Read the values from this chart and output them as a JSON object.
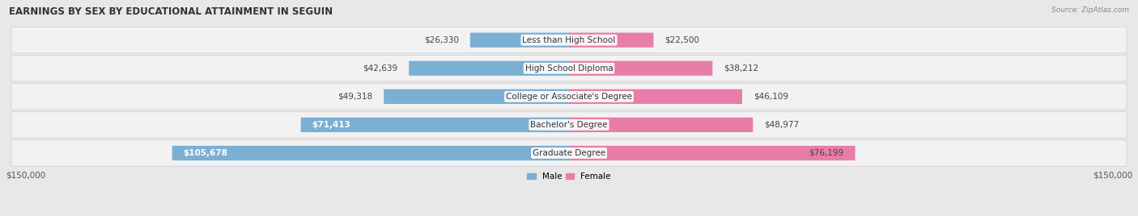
{
  "title": "EARNINGS BY SEX BY EDUCATIONAL ATTAINMENT IN SEGUIN",
  "source": "Source: ZipAtlas.com",
  "categories": [
    "Less than High School",
    "High School Diploma",
    "College or Associate's Degree",
    "Bachelor's Degree",
    "Graduate Degree"
  ],
  "male_values": [
    26330,
    42639,
    49318,
    71413,
    105678
  ],
  "female_values": [
    22500,
    38212,
    46109,
    48977,
    76199
  ],
  "male_color": "#7bafd4",
  "female_color": "#e87da8",
  "max_value": 150000,
  "background_color": "#e8e8e8",
  "row_bg_color": "#f2f2f2",
  "title_fontsize": 8.5,
  "label_fontsize": 7.5,
  "value_fontsize": 7.5,
  "axis_label": "$150,000"
}
